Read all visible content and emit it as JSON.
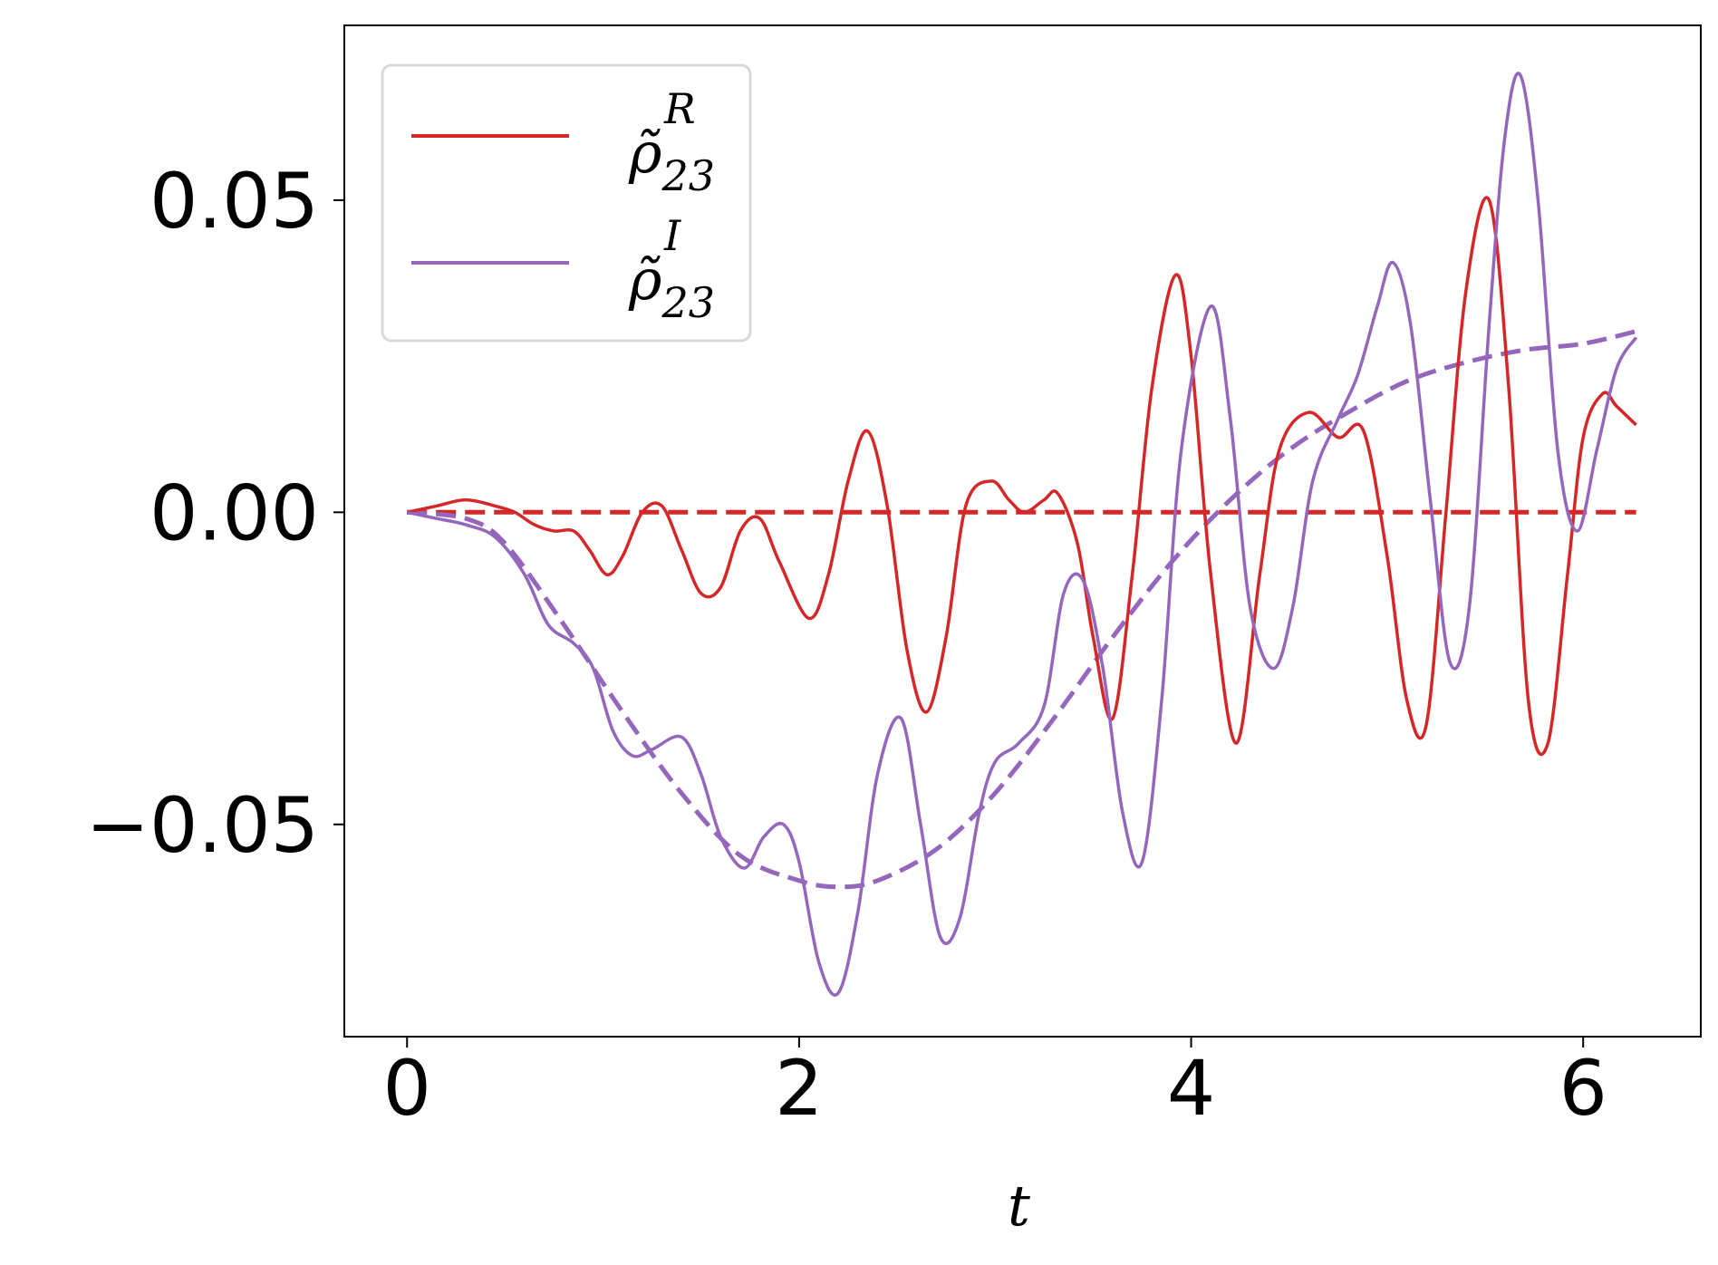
{
  "chart_data": {
    "type": "line",
    "xlabel": "t",
    "ylabel": "",
    "xlim": [
      -0.32,
      6.6
    ],
    "ylim": [
      -0.084,
      0.078
    ],
    "xticks": [
      {
        "value": 0,
        "label": "0"
      },
      {
        "value": 2,
        "label": "2"
      },
      {
        "value": 4,
        "label": "4"
      },
      {
        "value": 6,
        "label": "6"
      }
    ],
    "yticks": [
      {
        "value": -0.05,
        "label": "−0.05"
      },
      {
        "value": 0.0,
        "label": "0.00"
      },
      {
        "value": 0.05,
        "label": "0.05"
      }
    ],
    "grid": false,
    "legend_position": "top-left",
    "series": [
      {
        "name": "ρ̃23R",
        "name_base": "ρ̃",
        "name_sub": "23",
        "name_sup": "R",
        "color": "#d62728",
        "style": "solid",
        "x": [
          0,
          0.15,
          0.3,
          0.45,
          0.55,
          0.65,
          0.75,
          0.85,
          0.93,
          1.02,
          1.1,
          1.2,
          1.3,
          1.4,
          1.5,
          1.6,
          1.7,
          1.8,
          1.9,
          2.05,
          2.15,
          2.25,
          2.35,
          2.45,
          2.55,
          2.65,
          2.75,
          2.85,
          2.98,
          3.07,
          3.15,
          3.25,
          3.32,
          3.42,
          3.5,
          3.6,
          3.7,
          3.8,
          3.92,
          4.0,
          4.1,
          4.23,
          4.35,
          4.45,
          4.6,
          4.75,
          4.88,
          5.0,
          5.1,
          5.2,
          5.3,
          5.4,
          5.52,
          5.62,
          5.72,
          5.82,
          5.92,
          6.0,
          6.1,
          6.17,
          6.27
        ],
        "y": [
          0,
          0.001,
          0.002,
          0.001,
          0,
          -0.002,
          -0.003,
          -0.003,
          -0.006,
          -0.01,
          -0.007,
          0,
          0.001,
          -0.006,
          -0.013,
          -0.012,
          -0.003,
          -0.001,
          -0.008,
          -0.017,
          -0.01,
          0.005,
          0.013,
          0.001,
          -0.022,
          -0.032,
          -0.02,
          0.001,
          0.005,
          0.002,
          0,
          0.002,
          0.003,
          -0.005,
          -0.02,
          -0.033,
          -0.01,
          0.02,
          0.038,
          0.025,
          -0.01,
          -0.037,
          -0.01,
          0.01,
          0.016,
          0.012,
          0.013,
          -0.007,
          -0.03,
          -0.034,
          0,
          0.035,
          0.05,
          0.02,
          -0.03,
          -0.037,
          -0.01,
          0.012,
          0.019,
          0.017,
          0.014
        ]
      },
      {
        "name": "ρ̃23I",
        "name_base": "ρ̃",
        "name_sub": "23",
        "name_sup": "I",
        "color": "#9467bd",
        "style": "solid",
        "x": [
          0,
          0.15,
          0.3,
          0.45,
          0.6,
          0.72,
          0.85,
          0.95,
          1.05,
          1.15,
          1.25,
          1.4,
          1.5,
          1.6,
          1.72,
          1.82,
          1.92,
          2.0,
          2.1,
          2.2,
          2.3,
          2.4,
          2.52,
          2.62,
          2.72,
          2.82,
          2.92,
          3.0,
          3.12,
          3.25,
          3.35,
          3.45,
          3.55,
          3.65,
          3.75,
          3.85,
          3.95,
          4.1,
          4.2,
          4.3,
          4.42,
          4.52,
          4.62,
          4.75,
          4.85,
          4.95,
          5.03,
          5.12,
          5.22,
          5.32,
          5.42,
          5.52,
          5.6,
          5.68,
          5.77,
          5.87,
          5.97,
          6.07,
          6.17,
          6.27
        ],
        "y": [
          0,
          -0.001,
          -0.002,
          -0.004,
          -0.01,
          -0.018,
          -0.021,
          -0.025,
          -0.035,
          -0.039,
          -0.038,
          -0.036,
          -0.042,
          -0.052,
          -0.057,
          -0.052,
          -0.05,
          -0.056,
          -0.072,
          -0.077,
          -0.064,
          -0.042,
          -0.033,
          -0.05,
          -0.068,
          -0.065,
          -0.048,
          -0.04,
          -0.037,
          -0.031,
          -0.013,
          -0.011,
          -0.025,
          -0.048,
          -0.056,
          -0.03,
          0.01,
          0.033,
          0.015,
          -0.015,
          -0.025,
          -0.015,
          0.005,
          0.015,
          0.022,
          0.033,
          0.04,
          0.03,
          0.002,
          -0.024,
          -0.015,
          0.03,
          0.06,
          0.07,
          0.05,
          0.01,
          -0.003,
          0.01,
          0.023,
          0.028
        ]
      },
      {
        "color": "#d62728",
        "style": "dashed",
        "x": [
          0,
          6.27
        ],
        "y": [
          0,
          0
        ]
      },
      {
        "color": "#9467bd",
        "style": "dashed",
        "x": [
          0,
          0.3,
          0.5,
          0.8,
          1.1,
          1.4,
          1.7,
          2.0,
          2.2,
          2.4,
          2.7,
          3.0,
          3.3,
          3.6,
          3.9,
          4.2,
          4.5,
          4.8,
          5.1,
          5.4,
          5.7,
          6.0,
          6.27
        ],
        "y": [
          0,
          -0.001,
          -0.005,
          -0.018,
          -0.032,
          -0.045,
          -0.055,
          -0.059,
          -0.06,
          -0.059,
          -0.054,
          -0.045,
          -0.033,
          -0.02,
          -0.008,
          0.002,
          0.01,
          0.016,
          0.021,
          0.024,
          0.026,
          0.027,
          0.029
        ]
      }
    ]
  }
}
